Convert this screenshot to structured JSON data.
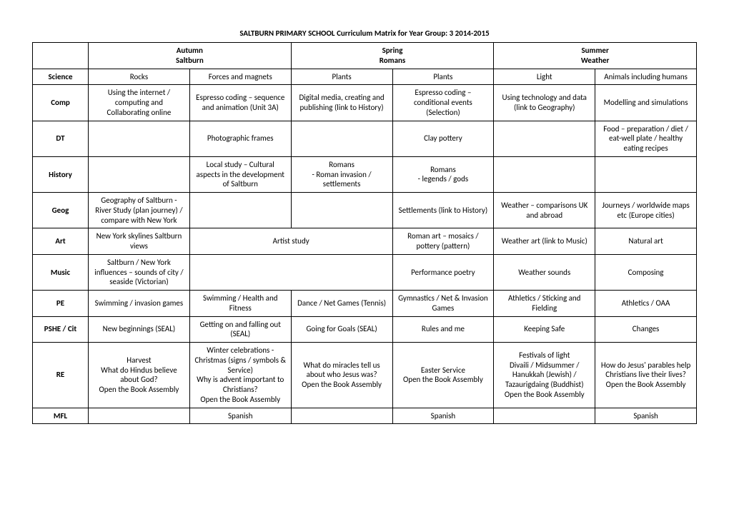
{
  "title": "SALTBURN PRIMARY SCHOOL   Curriculum Matrix for Year Group:  3        2014-2015",
  "terms": [
    {
      "name": "Autumn",
      "sub": "Saltburn"
    },
    {
      "name": "Spring",
      "sub": "Romans"
    },
    {
      "name": "Summer",
      "sub": "Weather"
    }
  ],
  "rows": [
    {
      "subject": "Science",
      "cells": [
        "Rocks",
        "Forces and magnets",
        "Plants",
        "Plants",
        "Light",
        "Animals including humans"
      ]
    },
    {
      "subject": "Comp",
      "cells": [
        "Using the internet / computing and Collaborating online",
        "Espresso coding – sequence and animation (Unit 3A)",
        "Digital media, creating and publishing (link to History)",
        "Espresso coding – conditional events (Selection)",
        "Using technology and data (link to Geography)",
        "Modelling and simulations"
      ]
    },
    {
      "subject": "DT",
      "cells": [
        "",
        "Photographic frames",
        "",
        "Clay pottery",
        "",
        "Food – preparation / diet / eat-well plate / healthy eating recipes"
      ]
    },
    {
      "subject": "History",
      "cells": [
        "",
        "Local study – Cultural aspects in the development of Saltburn",
        "Romans\n- Roman invasion / settlements",
        "Romans\n- legends  / gods",
        "",
        ""
      ]
    },
    {
      "subject": "Geog",
      "cells": [
        "Geography of Saltburn - River Study (plan journey) / compare with New York",
        "",
        "",
        "Settlements (link to History)",
        "Weather – comparisons UK and abroad",
        "Journeys / worldwide maps etc (Europe cities)"
      ]
    },
    {
      "subject": "Art",
      "cells": [
        "New York skylines Saltburn views",
        "",
        "Artist study",
        "Roman art – mosaics / pottery (pattern)",
        "Weather art (link to Music)",
        "Natural art"
      ],
      "merge23": true
    },
    {
      "subject": "Music",
      "cells": [
        "Saltburn / New York influences – sounds of city / seaside (Victorian)",
        "",
        "",
        "Performance poetry",
        "Weather sounds",
        "Composing"
      ],
      "merge23": true
    },
    {
      "subject": "PE",
      "cells": [
        "Swimming / invasion games",
        "Swimming / Health and Fitness",
        "Dance / Net Games (Tennis)",
        "Gymnastics / Net & Invasion Games",
        "Athletics / Sticking and Fielding",
        "Athletics / OAA"
      ]
    },
    {
      "subject": "PSHE / Cit",
      "cells": [
        "New beginnings (SEAL)",
        "Getting on and falling out (SEAL)",
        "Going for Goals (SEAL)",
        "Rules and me",
        "Keeping Safe",
        "Changes"
      ]
    },
    {
      "subject": "RE",
      "cells": [
        "Harvest\nWhat do Hindus believe about God?\nOpen the Book Assembly",
        "Winter celebrations - Christmas (signs / symbols & Service)\nWhy is advent important to Christians?\nOpen the Book Assembly",
        "What do miracles tell us about who Jesus was?\nOpen the Book Assembly",
        "Easter Service\nOpen the Book Assembly",
        "Festivals of light\nDivaili / Midsummer / Hanukkah (Jewish) / Tazaurigdaing (Buddhist)\nOpen the Book Assembly",
        "How do Jesus' parables help Christians live their lives?\nOpen the Book Assembly"
      ]
    },
    {
      "subject": "MFL",
      "cells": [
        "",
        "Spanish",
        "",
        "Spanish",
        "",
        "Spanish"
      ]
    }
  ],
  "styling": {
    "font_family": "Calibri",
    "font_size_pt": 11,
    "title_weight": "bold",
    "border_color": "#000000",
    "background_color": "#ffffff",
    "text_color": "#000000",
    "col_subject_width_pct": 7,
    "col_term_width_pct": 15.5
  }
}
